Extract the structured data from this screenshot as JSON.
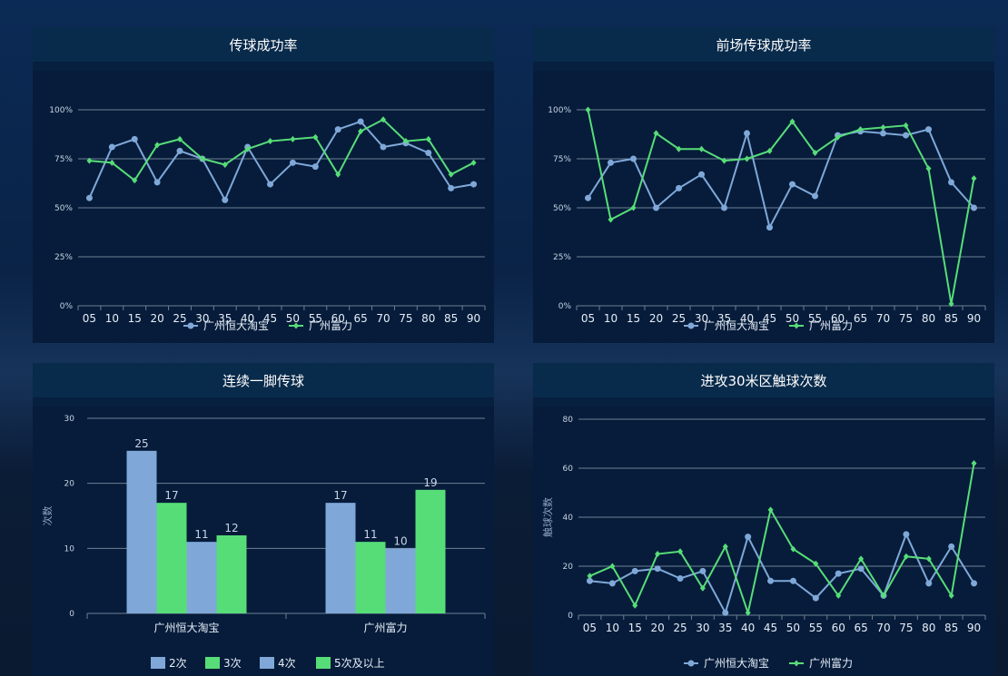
{
  "colors": {
    "blue": "#7fa8d8",
    "green": "#57dd78",
    "grid": "#6f7f96"
  },
  "charts": [
    {
      "id": "c1",
      "title": "传球成功率",
      "chart_data": {
        "type": "line",
        "categories": [
          "05",
          "10",
          "15",
          "20",
          "25",
          "30",
          "35",
          "40",
          "45",
          "50",
          "55",
          "60",
          "65",
          "70",
          "75",
          "80",
          "85",
          "90"
        ],
        "yticks": [
          "100%",
          "75%",
          "50%",
          "25%",
          "0%"
        ],
        "ylim": [
          0,
          100
        ],
        "series": [
          {
            "name": "广州恒大淘宝",
            "marker": "circle",
            "values": [
              55,
              81,
              85,
              63,
              79,
              75,
              54,
              81,
              62,
              73,
              71,
              90,
              94,
              81,
              83,
              78,
              60,
              62
            ]
          },
          {
            "name": "广州富力",
            "marker": "diamond",
            "values": [
              74,
              73,
              64,
              82,
              85,
              75,
              72,
              80,
              84,
              85,
              86,
              67,
              89,
              95,
              84,
              85,
              67,
              73
            ]
          }
        ]
      }
    },
    {
      "id": "c2",
      "title": "前场传球成功率",
      "chart_data": {
        "type": "line",
        "categories": [
          "05",
          "10",
          "15",
          "20",
          "25",
          "30",
          "35",
          "40",
          "45",
          "50",
          "55",
          "60",
          "65",
          "70",
          "75",
          "80",
          "85",
          "90"
        ],
        "yticks": [
          "100%",
          "75%",
          "50%",
          "25%",
          "0%"
        ],
        "ylim": [
          0,
          100
        ],
        "series": [
          {
            "name": "广州恒大淘宝",
            "marker": "circle",
            "values": [
              55,
              73,
              75,
              50,
              60,
              67,
              50,
              88,
              40,
              62,
              56,
              87,
              89,
              88,
              87,
              90,
              63,
              50
            ]
          },
          {
            "name": "广州富力",
            "marker": "diamond",
            "values": [
              100,
              44,
              50,
              88,
              80,
              80,
              74,
              75,
              79,
              94,
              78,
              86,
              90,
              91,
              92,
              70,
              1,
              65
            ]
          }
        ]
      }
    },
    {
      "id": "c3",
      "title": "连续一脚传球",
      "chart_data": {
        "type": "bar",
        "categories": [
          "广州恒大淘宝",
          "广州富力"
        ],
        "yticks": [
          "30",
          "20",
          "10",
          "0"
        ],
        "ylim": [
          0,
          30
        ],
        "ylabel": "次数",
        "series": [
          {
            "name": "2次",
            "color": "#7fa8d8",
            "values": [
              25,
              17
            ]
          },
          {
            "name": "3次",
            "color": "#57dd78",
            "values": [
              17,
              11
            ]
          },
          {
            "name": "4次",
            "color": "#7fa8d8",
            "values": [
              11,
              10
            ]
          },
          {
            "name": "5次及以上",
            "color": "#57dd78",
            "values": [
              12,
              19
            ]
          }
        ]
      }
    },
    {
      "id": "c4",
      "title": "进攻30米区触球次数",
      "chart_data": {
        "type": "line",
        "categories": [
          "05",
          "10",
          "15",
          "20",
          "25",
          "30",
          "35",
          "40",
          "45",
          "50",
          "55",
          "60",
          "65",
          "70",
          "75",
          "80",
          "85",
          "90"
        ],
        "yticks": [
          "80",
          "60",
          "40",
          "20",
          "0"
        ],
        "ylim": [
          0,
          80
        ],
        "ylabel": "触球次数",
        "series": [
          {
            "name": "广州恒大淘宝",
            "marker": "circle",
            "values": [
              14,
              13,
              18,
              19,
              15,
              18,
              1,
              32,
              14,
              14,
              7,
              17,
              19,
              8,
              33,
              13,
              28,
              13
            ]
          },
          {
            "name": "广州富力",
            "marker": "diamond",
            "values": [
              16,
              20,
              4,
              25,
              26,
              11,
              28,
              1,
              43,
              27,
              21,
              8,
              23,
              8,
              24,
              23,
              8,
              62
            ]
          }
        ]
      }
    }
  ]
}
